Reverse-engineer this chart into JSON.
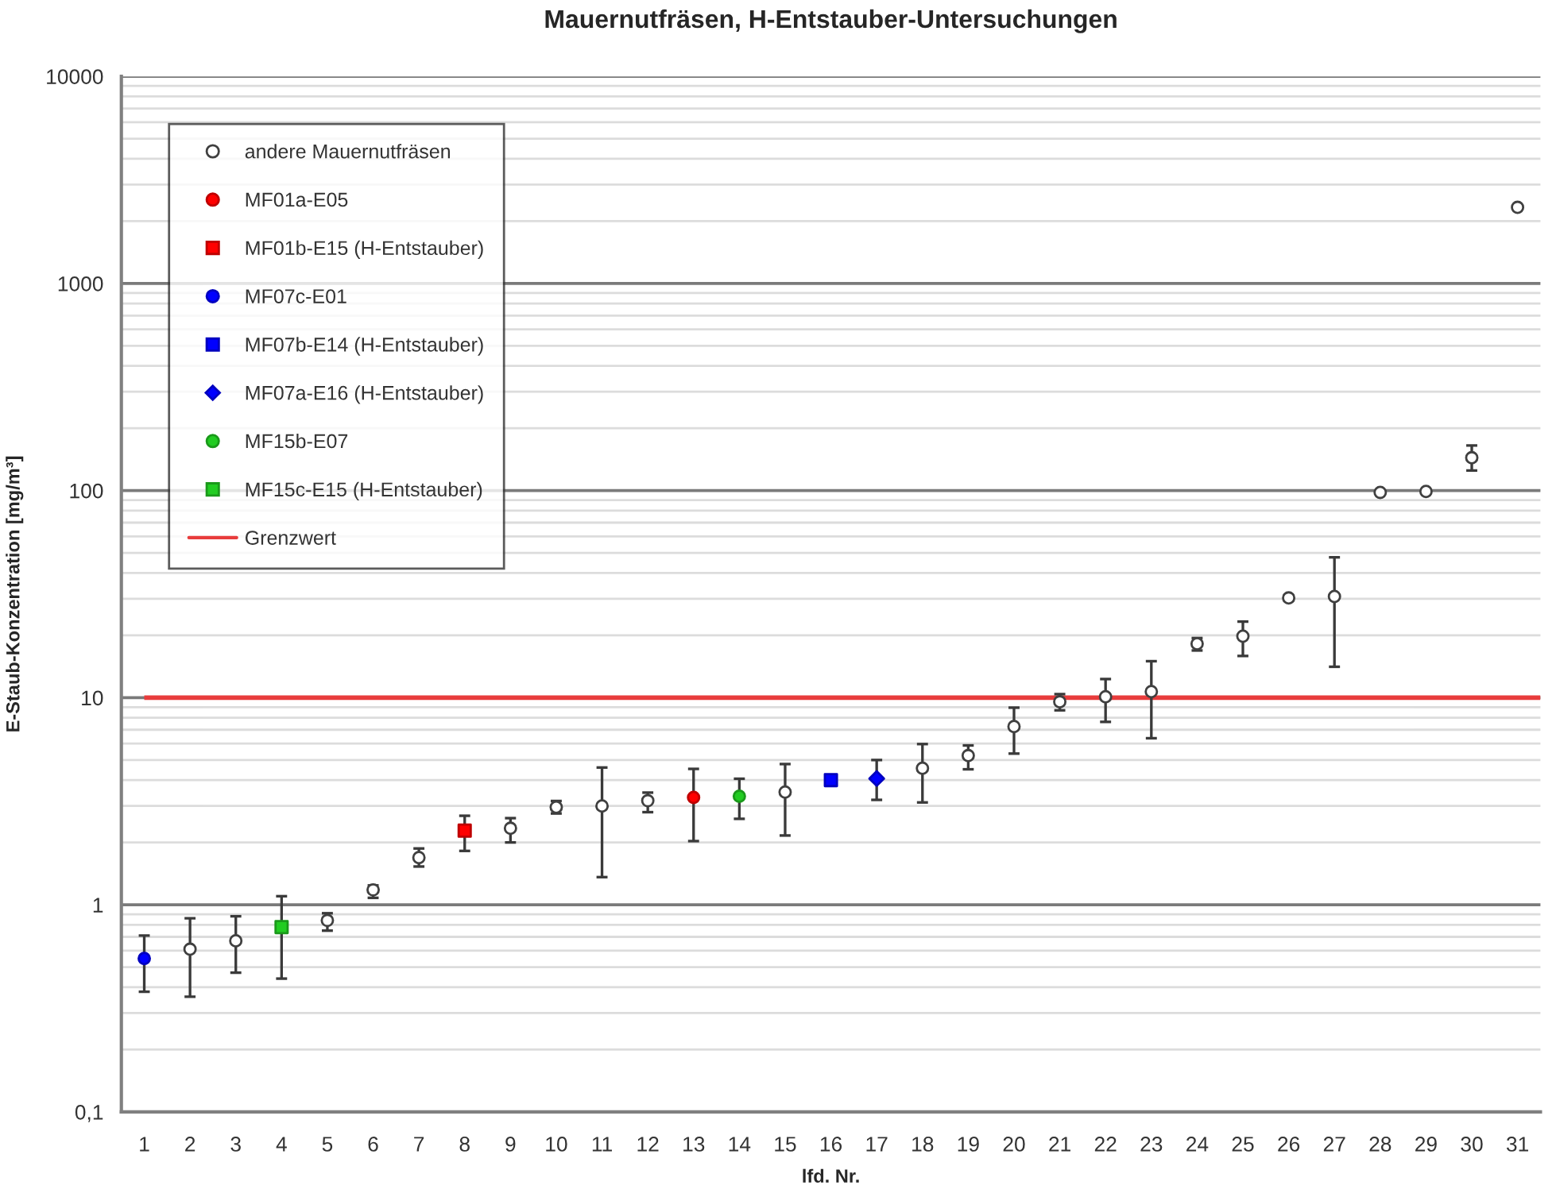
{
  "chart_data": {
    "type": "scatter",
    "title": "Mauernutfräsen, H-Entstauber-Untersuchungen",
    "xlabel": "lfd. Nr.",
    "ylabel": "E-Staub-Konzentration [mg/m³]",
    "categories": [
      "1",
      "2",
      "3",
      "4",
      "5",
      "6",
      "7",
      "8",
      "9",
      "10",
      "11",
      "12",
      "13",
      "14",
      "15",
      "16",
      "17",
      "18",
      "19",
      "20",
      "21",
      "22",
      "23",
      "24",
      "25",
      "26",
      "27",
      "28",
      "29",
      "30",
      "31"
    ],
    "log": "y",
    "ylim": [
      0.1,
      10000
    ],
    "yticks": [
      {
        "value": 0.1,
        "label": "0,1"
      },
      1,
      10,
      100,
      1000,
      10000
    ],
    "grid": "y",
    "legend": "top left",
    "series": [
      {
        "name": "andere Mauernutfräsen",
        "color": "#ffffff",
        "marker": "circle",
        "values": [
          null,
          0.61,
          0.67,
          null,
          0.84,
          1.18,
          1.69,
          null,
          2.34,
          2.96,
          3.0,
          3.18,
          null,
          null,
          3.5,
          null,
          null,
          4.56,
          5.25,
          7.25,
          9.55,
          10.1,
          10.7,
          18.2,
          19.8,
          30.3,
          30.8,
          98,
          99,
          144,
          2330
        ],
        "errors": [
          null,
          [
            0.36,
            0.86
          ],
          [
            0.47,
            0.88
          ],
          null,
          [
            0.75,
            0.91
          ],
          [
            1.08,
            1.24
          ],
          [
            1.53,
            1.87
          ],
          null,
          [
            2.0,
            2.62
          ],
          [
            2.76,
            3.17
          ],
          [
            1.36,
            4.6
          ],
          [
            2.8,
            3.48
          ],
          null,
          null,
          [
            2.16,
            4.78
          ],
          null,
          null,
          [
            3.12,
            5.97
          ],
          [
            4.51,
            5.88
          ],
          [
            5.37,
            8.95
          ],
          [
            8.69,
            10.4
          ],
          [
            7.64,
            12.3
          ],
          [
            6.37,
            15.0
          ],
          [
            16.9,
            19.4
          ],
          [
            15.9,
            23.3
          ],
          [
            29.4,
            31.2
          ],
          [
            14.1,
            47.6
          ],
          null,
          null,
          [
            125,
            165
          ],
          null
        ]
      },
      {
        "name": "MF01a-E05",
        "color": "#ff0000",
        "marker": "circle",
        "values": [
          null,
          null,
          null,
          null,
          null,
          null,
          null,
          null,
          null,
          null,
          null,
          null,
          3.3,
          null,
          null,
          null,
          null,
          null,
          null,
          null,
          null,
          null,
          null,
          null,
          null,
          null,
          null,
          null,
          null,
          null,
          null
        ],
        "errors": [
          null,
          null,
          null,
          null,
          null,
          null,
          null,
          null,
          null,
          null,
          null,
          null,
          [
            2.03,
            4.53
          ],
          null,
          null,
          null,
          null,
          null,
          null,
          null,
          null,
          null,
          null,
          null,
          null,
          null,
          null,
          null,
          null,
          null,
          null
        ]
      },
      {
        "name": "MF01b-E15 (H-Entstauber)",
        "color": "#ff0000",
        "marker": "square",
        "values": [
          null,
          null,
          null,
          null,
          null,
          null,
          null,
          2.28,
          null,
          null,
          null,
          null,
          null,
          null,
          null,
          null,
          null,
          null,
          null,
          null,
          null,
          null,
          null,
          null,
          null,
          null,
          null,
          null,
          null,
          null,
          null
        ],
        "errors": [
          null,
          null,
          null,
          null,
          null,
          null,
          null,
          [
            1.82,
            2.69
          ],
          null,
          null,
          null,
          null,
          null,
          null,
          null,
          null,
          null,
          null,
          null,
          null,
          null,
          null,
          null,
          null,
          null,
          null,
          null,
          null,
          null,
          null,
          null
        ]
      },
      {
        "name": "MF07c-E01",
        "color": "#0000ff",
        "marker": "circle",
        "values": [
          0.55,
          null,
          null,
          null,
          null,
          null,
          null,
          null,
          null,
          null,
          null,
          null,
          null,
          null,
          null,
          null,
          null,
          null,
          null,
          null,
          null,
          null,
          null,
          null,
          null,
          null,
          null,
          null,
          null,
          null,
          null
        ],
        "errors": [
          [
            0.38,
            0.71
          ],
          null,
          null,
          null,
          null,
          null,
          null,
          null,
          null,
          null,
          null,
          null,
          null,
          null,
          null,
          null,
          null,
          null,
          null,
          null,
          null,
          null,
          null,
          null,
          null,
          null,
          null,
          null,
          null,
          null,
          null
        ]
      },
      {
        "name": "MF07b-E14 (H-Entstauber)",
        "color": "#0000ff",
        "marker": "square",
        "values": [
          null,
          null,
          null,
          null,
          null,
          null,
          null,
          null,
          null,
          null,
          null,
          null,
          null,
          null,
          null,
          4.0,
          null,
          null,
          null,
          null,
          null,
          null,
          null,
          null,
          null,
          null,
          null,
          null,
          null,
          null,
          null
        ]
      },
      {
        "name": "MF07a-E16 (H-Entstauber)",
        "color": "#0000ff",
        "marker": "diamond",
        "values": [
          null,
          null,
          null,
          null,
          null,
          null,
          null,
          null,
          null,
          null,
          null,
          null,
          null,
          null,
          null,
          null,
          4.07,
          null,
          null,
          null,
          null,
          null,
          null,
          null,
          null,
          null,
          null,
          null,
          null,
          null,
          null
        ],
        "errors": [
          null,
          null,
          null,
          null,
          null,
          null,
          null,
          null,
          null,
          null,
          null,
          null,
          null,
          null,
          null,
          null,
          [
            3.21,
            5.0
          ],
          null,
          null,
          null,
          null,
          null,
          null,
          null,
          null,
          null,
          null,
          null,
          null,
          null,
          null
        ]
      },
      {
        "name": "MF15b-E07",
        "color": "#22cc22",
        "marker": "circle",
        "values": [
          null,
          null,
          null,
          null,
          null,
          null,
          null,
          null,
          null,
          null,
          null,
          null,
          null,
          3.34,
          null,
          null,
          null,
          null,
          null,
          null,
          null,
          null,
          null,
          null,
          null,
          null,
          null,
          null,
          null,
          null,
          null
        ],
        "errors": [
          null,
          null,
          null,
          null,
          null,
          null,
          null,
          null,
          null,
          null,
          null,
          null,
          null,
          [
            2.6,
            4.06
          ],
          null,
          null,
          null,
          null,
          null,
          null,
          null,
          null,
          null,
          null,
          null,
          null,
          null,
          null,
          null,
          null,
          null
        ]
      },
      {
        "name": "MF15c-E15 (H-Entstauber)",
        "color": "#22cc22",
        "marker": "square",
        "values": [
          null,
          null,
          null,
          0.78,
          null,
          null,
          null,
          null,
          null,
          null,
          null,
          null,
          null,
          null,
          null,
          null,
          null,
          null,
          null,
          null,
          null,
          null,
          null,
          null,
          null,
          null,
          null,
          null,
          null,
          null,
          null
        ],
        "errors": [
          null,
          null,
          null,
          [
            0.44,
            1.1
          ],
          null,
          null,
          null,
          null,
          null,
          null,
          null,
          null,
          null,
          null,
          null,
          null,
          null,
          null,
          null,
          null,
          null,
          null,
          null,
          null,
          null,
          null,
          null,
          null,
          null,
          null,
          null
        ]
      }
    ],
    "ref_lines": [
      {
        "axis": "y",
        "value": 10,
        "label": "Grenzwert",
        "color": "#e83c3c"
      }
    ]
  }
}
